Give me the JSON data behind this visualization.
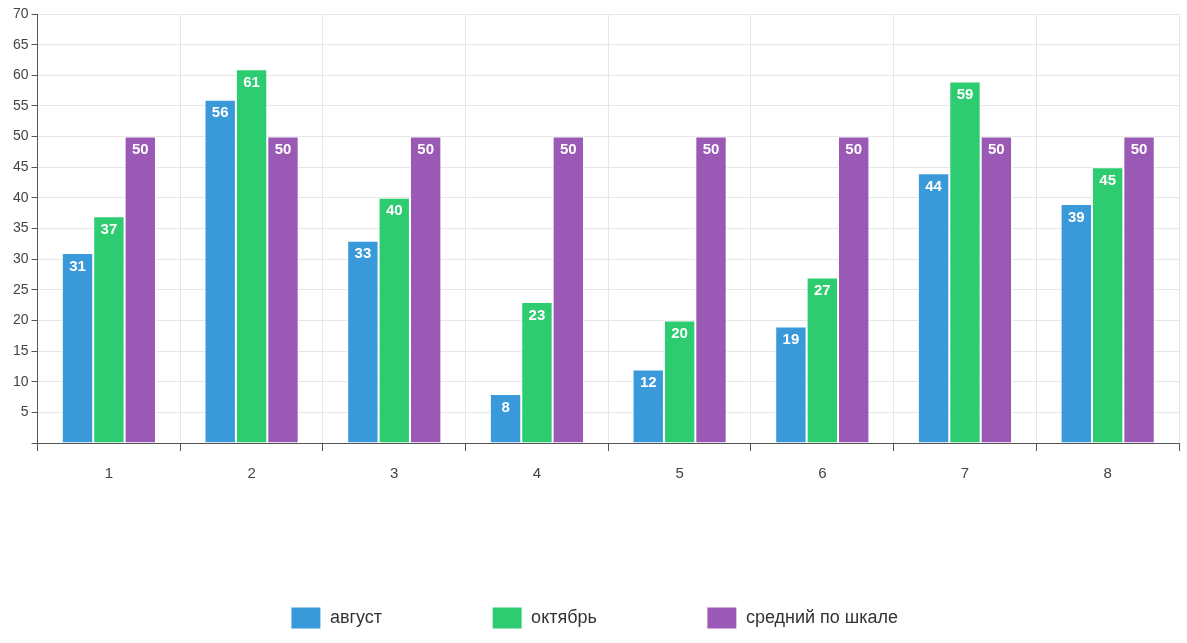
{
  "chart_data": {
    "type": "bar",
    "categories": [
      "1",
      "2",
      "3",
      "4",
      "5",
      "6",
      "7",
      "8"
    ],
    "series": [
      {
        "name": "август",
        "color": "#3a99d8",
        "values": [
          31,
          56,
          33,
          8,
          12,
          19,
          44,
          39
        ]
      },
      {
        "name": "октябрь",
        "color": "#2ecc71",
        "values": [
          37,
          61,
          40,
          23,
          20,
          27,
          59,
          45
        ]
      },
      {
        "name": "средний по шкале",
        "color": "#9b59b6",
        "values": [
          50,
          50,
          50,
          50,
          50,
          50,
          50,
          50
        ]
      }
    ],
    "ylim": [
      0,
      70
    ],
    "yticks": [
      {
        "value": 0,
        "label": null
      },
      5,
      10,
      15,
      20,
      25,
      30,
      35,
      40,
      45,
      50,
      55,
      60,
      65,
      70
    ],
    "grid": true,
    "legend": "bottom",
    "data_labels": true
  }
}
